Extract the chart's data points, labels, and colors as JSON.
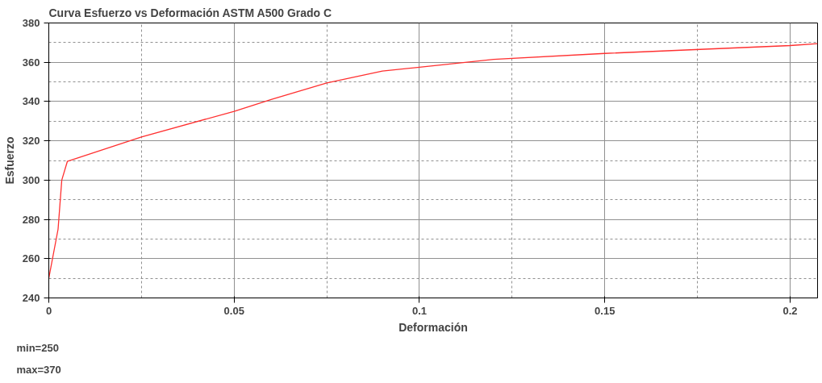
{
  "chart_data": {
    "type": "line",
    "title": "Curva Esfuerzo vs Deformación ASTM A500 Grado C",
    "xlabel": "Deformación",
    "ylabel": "Esfuerzo",
    "x": [
      0,
      0.0025,
      0.0035,
      0.005,
      0.025,
      0.05,
      0.06,
      0.075,
      0.09,
      0.1,
      0.12,
      0.15,
      0.2,
      0.2074
    ],
    "series": [
      {
        "color": "#ff3030",
        "values": [
          250,
          275,
          300,
          309.5,
          322,
          335,
          341,
          349.5,
          355.5,
          357.5,
          361.5,
          364.5,
          368.5,
          369.5
        ]
      }
    ],
    "xlim": [
      0,
      0.2074
    ],
    "xticks": [
      0,
      0.05,
      0.1,
      0.15,
      0.2
    ],
    "ylim": [
      240,
      380
    ],
    "yticks": [
      240,
      260,
      280,
      300,
      320,
      340,
      360,
      380
    ],
    "grid": true,
    "marker": "none",
    "line_style": "solid",
    "annotations": [
      "min=250",
      "max=370"
    ]
  }
}
